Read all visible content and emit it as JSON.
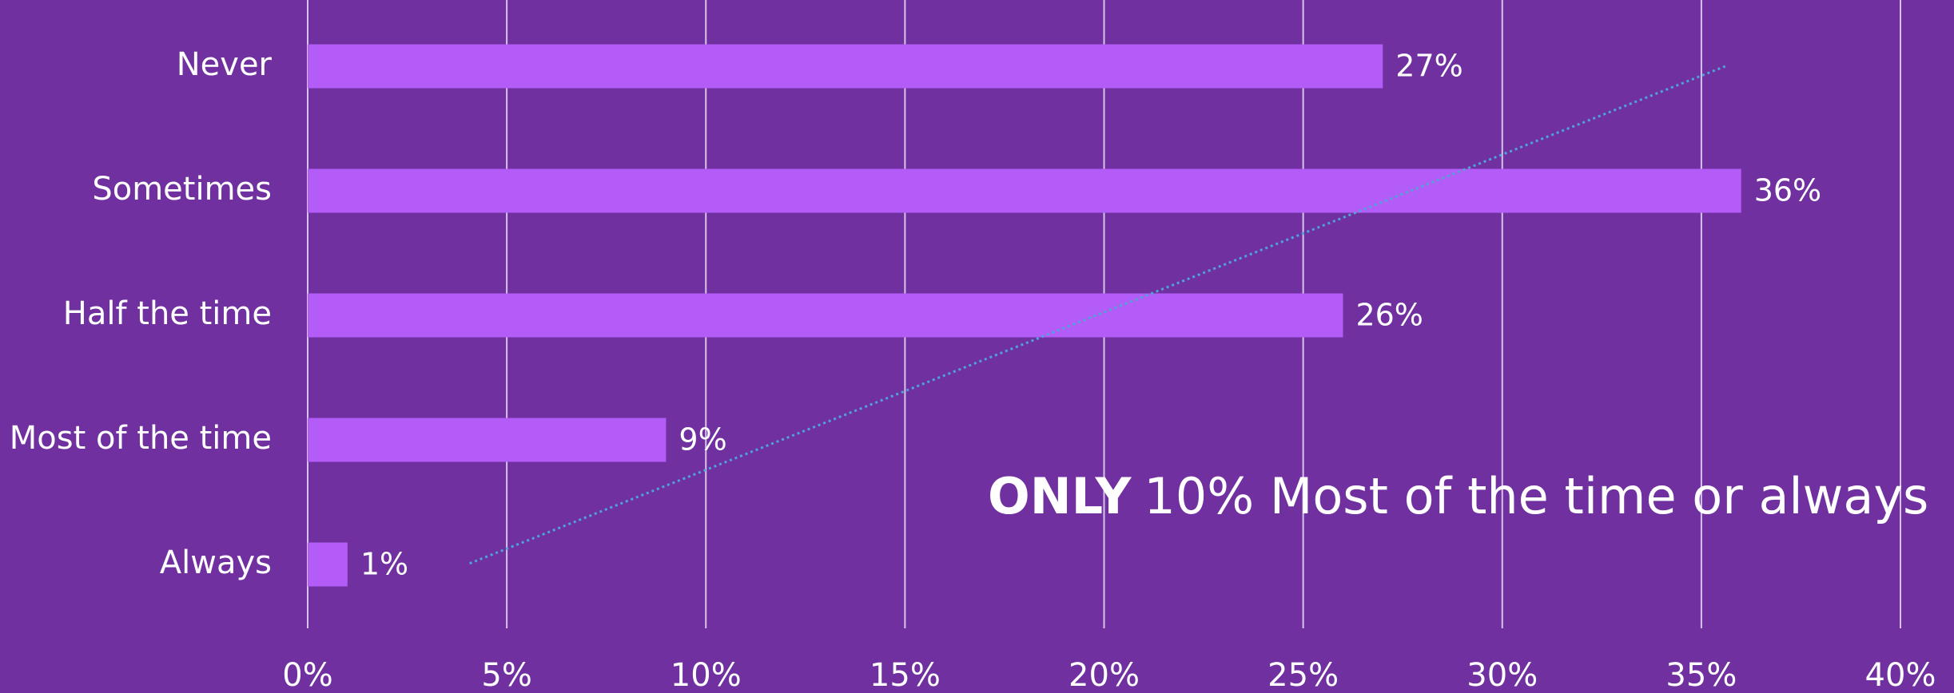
{
  "chart_data": {
    "type": "bar",
    "orientation": "horizontal",
    "categories": [
      "Never",
      "Sometimes",
      "Half the time",
      "Most of the time",
      "Always"
    ],
    "values": [
      27,
      36,
      26,
      9,
      1
    ],
    "value_labels": [
      "27%",
      "36%",
      "26%",
      "9%",
      "1%"
    ],
    "color": "#b35cf7",
    "xlim": [
      0,
      40
    ],
    "xticks": [
      {
        "value": 0,
        "label": "0%"
      },
      {
        "value": 5,
        "label": "5%"
      },
      {
        "value": 10,
        "label": "10%"
      },
      {
        "value": 15,
        "label": "15%"
      },
      {
        "value": 20,
        "label": "20%"
      },
      {
        "value": 25,
        "label": "25%"
      },
      {
        "value": 30,
        "label": "30%"
      },
      {
        "value": 35,
        "label": "35%"
      },
      {
        "value": 40,
        "label": "40%"
      }
    ],
    "grid": true,
    "trendline": true,
    "trendline_color": "#4fa3d9",
    "annotation": {
      "bold": "ONLY",
      "text": "10% Most of the time or always"
    }
  }
}
